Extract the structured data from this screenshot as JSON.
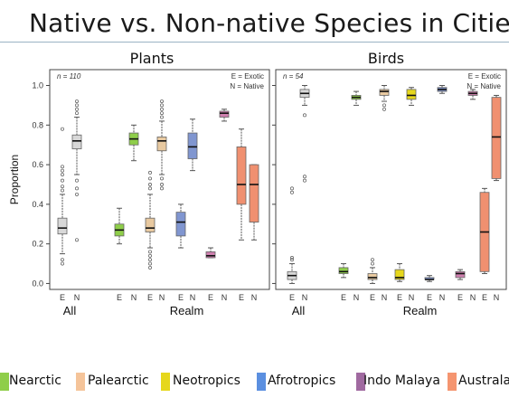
{
  "title": "Native vs. Non-native Species in Cities",
  "colors": {
    "All": "#d8d8d8",
    "Nearctic": "#8fce4a",
    "Palearctic": "#e8c9a0",
    "Neotropics": "#e6d71c",
    "Afrotropics": "#8096d0",
    "Indo Malaya": "#d080b0",
    "Australasia": "#f09070"
  },
  "legend": [
    {
      "label": "Nearctic",
      "color": "#8fce4a"
    },
    {
      "label": "Palearctic",
      "color": "#f5c49a"
    },
    {
      "label": "Neotropics",
      "color": "#e6d71c"
    },
    {
      "label": "Afrotropics",
      "color": "#5b8fe0"
    },
    {
      "label": "Indo Malaya",
      "color": "#a06aa0"
    },
    {
      "label": "Australa",
      "color": "#f59570"
    }
  ],
  "chart_data": [
    {
      "type": "box",
      "title": "Plants",
      "ylabel": "Proportion",
      "ylim": [
        -0.03,
        1.08
      ],
      "yticks": [
        0.0,
        0.2,
        0.4,
        0.6,
        0.8,
        1.0
      ],
      "n_label": "n = 110",
      "key": [
        "E = Exotic",
        "N = Native"
      ],
      "groups": [
        "All",
        "Realm"
      ],
      "boxes": [
        {
          "region": "All",
          "status": "E",
          "stats": [
            0.15,
            0.25,
            0.28,
            0.33,
            0.45
          ],
          "outliers": [
            0.47,
            0.49,
            0.52,
            0.55,
            0.57,
            0.59,
            0.78,
            0.1,
            0.12
          ]
        },
        {
          "region": "All",
          "status": "N",
          "stats": [
            0.55,
            0.68,
            0.72,
            0.75,
            0.84
          ],
          "outliers": [
            0.86,
            0.88,
            0.9,
            0.92,
            0.52,
            0.48,
            0.45,
            0.22
          ]
        },
        {
          "region": "Nearctic",
          "status": "E",
          "stats": [
            0.2,
            0.24,
            0.27,
            0.3,
            0.38
          ],
          "outliers": []
        },
        {
          "region": "Nearctic",
          "status": "N",
          "stats": [
            0.62,
            0.7,
            0.73,
            0.76,
            0.8
          ],
          "outliers": []
        },
        {
          "region": "Palearctic",
          "status": "E",
          "stats": [
            0.18,
            0.26,
            0.28,
            0.33,
            0.45
          ],
          "outliers": [
            0.08,
            0.1,
            0.12,
            0.14,
            0.16,
            0.48,
            0.5,
            0.53,
            0.56
          ]
        },
        {
          "region": "Palearctic",
          "status": "N",
          "stats": [
            0.55,
            0.67,
            0.72,
            0.74,
            0.82
          ],
          "outliers": [
            0.84,
            0.86,
            0.88,
            0.9,
            0.92,
            0.5,
            0.48,
            0.53
          ]
        },
        {
          "region": "Afrotropics",
          "status": "E",
          "stats": [
            0.18,
            0.24,
            0.31,
            0.36,
            0.4
          ],
          "outliers": []
        },
        {
          "region": "Afrotropics",
          "status": "N",
          "stats": [
            0.57,
            0.63,
            0.69,
            0.76,
            0.83
          ],
          "outliers": []
        },
        {
          "region": "Indo Malaya",
          "status": "E",
          "stats": [
            0.13,
            0.13,
            0.14,
            0.16,
            0.18
          ],
          "outliers": []
        },
        {
          "region": "Indo Malaya",
          "status": "N",
          "stats": [
            0.82,
            0.84,
            0.86,
            0.87,
            0.88
          ],
          "outliers": []
        },
        {
          "region": "Australasia",
          "status": "E",
          "stats": [
            0.22,
            0.4,
            0.5,
            0.69,
            0.78
          ],
          "outliers": []
        },
        {
          "region": "Australasia",
          "status": "N",
          "stats": [
            0.22,
            0.31,
            0.5,
            0.6,
            0.6
          ],
          "outliers": []
        }
      ]
    },
    {
      "type": "box",
      "title": "Birds",
      "ylim": [
        -0.03,
        1.08
      ],
      "yticks": [
        0.0,
        0.2,
        0.4,
        0.6,
        0.8,
        1.0
      ],
      "n_label": "n = 54",
      "key": [
        "E = Exotic",
        "N = Native"
      ],
      "groups": [
        "All",
        "Realm"
      ],
      "boxes": [
        {
          "region": "All",
          "status": "E",
          "stats": [
            0.0,
            0.02,
            0.04,
            0.06,
            0.1
          ],
          "outliers": [
            0.12,
            0.13,
            0.46,
            0.48
          ]
        },
        {
          "region": "All",
          "status": "N",
          "stats": [
            0.9,
            0.94,
            0.96,
            0.98,
            1.0
          ],
          "outliers": [
            0.52,
            0.54,
            0.85
          ]
        },
        {
          "region": "Nearctic",
          "status": "E",
          "stats": [
            0.03,
            0.05,
            0.06,
            0.08,
            0.1
          ],
          "outliers": []
        },
        {
          "region": "Nearctic",
          "status": "N",
          "stats": [
            0.9,
            0.93,
            0.94,
            0.95,
            0.97
          ],
          "outliers": []
        },
        {
          "region": "Palearctic",
          "status": "E",
          "stats": [
            0.0,
            0.02,
            0.03,
            0.05,
            0.08
          ],
          "outliers": [
            0.1,
            0.12
          ]
        },
        {
          "region": "Palearctic",
          "status": "N",
          "stats": [
            0.92,
            0.95,
            0.97,
            0.98,
            1.0
          ],
          "outliers": [
            0.88,
            0.9
          ]
        },
        {
          "region": "Neotropics",
          "status": "E",
          "stats": [
            0.01,
            0.02,
            0.03,
            0.07,
            0.1
          ],
          "outliers": []
        },
        {
          "region": "Neotropics",
          "status": "N",
          "stats": [
            0.9,
            0.93,
            0.95,
            0.98,
            0.99
          ],
          "outliers": []
        },
        {
          "region": "Afrotropics",
          "status": "E",
          "stats": [
            0.01,
            0.02,
            0.02,
            0.03,
            0.04
          ],
          "outliers": []
        },
        {
          "region": "Afrotropics",
          "status": "N",
          "stats": [
            0.96,
            0.97,
            0.98,
            0.99,
            1.0
          ],
          "outliers": []
        },
        {
          "region": "Indo Malaya",
          "status": "E",
          "stats": [
            0.02,
            0.03,
            0.05,
            0.06,
            0.07
          ],
          "outliers": []
        },
        {
          "region": "Indo Malaya",
          "status": "N",
          "stats": [
            0.93,
            0.95,
            0.96,
            0.97,
            0.98
          ],
          "outliers": []
        },
        {
          "region": "Australasia",
          "status": "E",
          "stats": [
            0.05,
            0.06,
            0.26,
            0.46,
            0.48
          ],
          "outliers": []
        },
        {
          "region": "Australasia",
          "status": "N",
          "stats": [
            0.52,
            0.53,
            0.74,
            0.94,
            0.95
          ],
          "outliers": []
        }
      ]
    }
  ]
}
